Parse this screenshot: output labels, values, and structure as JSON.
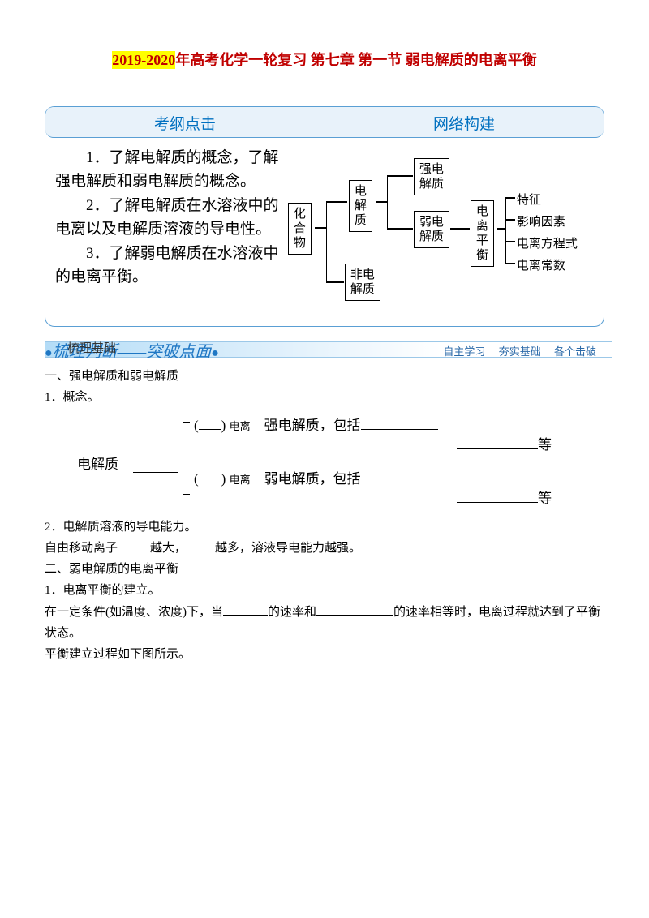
{
  "title": {
    "highlight": "2019-2020",
    "rest": "年高考化学一轮复习 第七章 第一节 弱电解质的电离平衡"
  },
  "blueBox": {
    "headers": [
      "考纲点击",
      "网络构建"
    ],
    "outline": [
      "　　1．了解电解质的概念，了解强电解质和弱电解质的概念。",
      "　　2．了解电解质在水溶液中的电离以及电解质溶液的导电性。",
      "　　3．了解弱电解质在水溶液中的电离平衡。"
    ],
    "diagram": {
      "root": "化\n合\n物",
      "branch1": "电\n解\n质",
      "branch2": "非电\n解质",
      "leaf1": "强电\n解质",
      "leaf2": "弱电\n解质",
      "sub": "电\n离\n平\n衡",
      "subLeaves": [
        "特征",
        "影响因素",
        "电离方程式",
        "电离常数"
      ]
    }
  },
  "banner": {
    "left1": "梳理基础",
    "mid": "梳理判断——突破点面",
    "rightItems": [
      "自主学习",
      "夯实基础",
      "各个击破"
    ]
  },
  "sections": {
    "s1_title": "一、强电解质和弱电解质",
    "s1_1": "1．概念。",
    "concept": {
      "root": "电解质",
      "top_paren": "电离",
      "top_label": "强电解质，包括",
      "top_tail": "等",
      "bot_paren": "电离",
      "bot_label": "弱电解质，包括",
      "bot_tail": "等"
    },
    "s1_2": "2．电解质溶液的导电能力。",
    "s1_2_body_a": "自由移动离子",
    "s1_2_body_b": "越大，",
    "s1_2_body_c": "越多，溶液导电能力越强。",
    "s2_title": "二、弱电解质的电离平衡",
    "s2_1": "1．电离平衡的建立。",
    "s2_1_body_a": "在一定条件(如温度、浓度)下，当",
    "s2_1_body_b": "的速率和",
    "s2_1_body_c": "的速率相等时，电离过程就达到了平衡状态。",
    "s2_1_tail": "平衡建立过程如下图所示。"
  },
  "colors": {
    "red": "#c00000",
    "highlightBg": "#ffff00",
    "blueBorder": "#5a9fd4",
    "blueHeaderBg": "#e8f2fa",
    "headerText": "#0070c0",
    "bannerBlue": "#1f77c4"
  }
}
